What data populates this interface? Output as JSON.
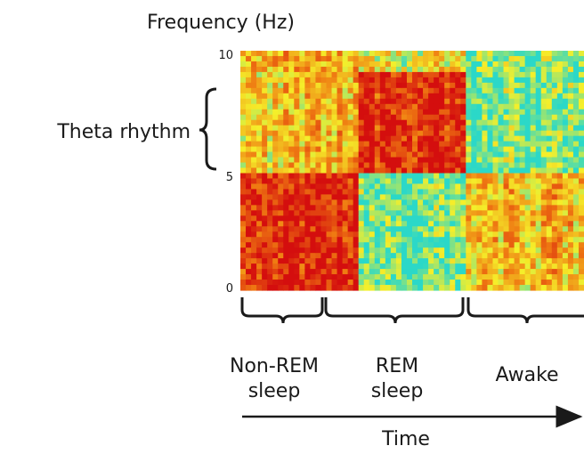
{
  "chart_data": {
    "type": "heatmap",
    "ylabel": "Frequency (Hz)",
    "xlabel": "Time",
    "ylim": [
      0,
      10
    ],
    "y_ticks": [
      "0",
      "5",
      "10"
    ],
    "band": {
      "label": "Theta rhythm",
      "range_hz": [
        5,
        9
      ]
    },
    "phases": [
      {
        "lines": [
          "Non-REM",
          "sleep"
        ],
        "time_range": [
          0,
          0.34
        ],
        "low_hz_power": "high",
        "theta_power": "moderate"
      },
      {
        "lines": [
          "REM",
          "sleep"
        ],
        "time_range": [
          0.34,
          0.65
        ],
        "low_hz_power": "low",
        "theta_power": "high"
      },
      {
        "lines": [
          "Awake"
        ],
        "time_range": [
          0.65,
          1.0
        ],
        "low_hz_power": "moderate",
        "theta_power": "low"
      }
    ],
    "colormap": [
      "#2bd8c8",
      "#f5ef2a",
      "#ef7a12",
      "#d40e0e"
    ],
    "grid": false
  }
}
